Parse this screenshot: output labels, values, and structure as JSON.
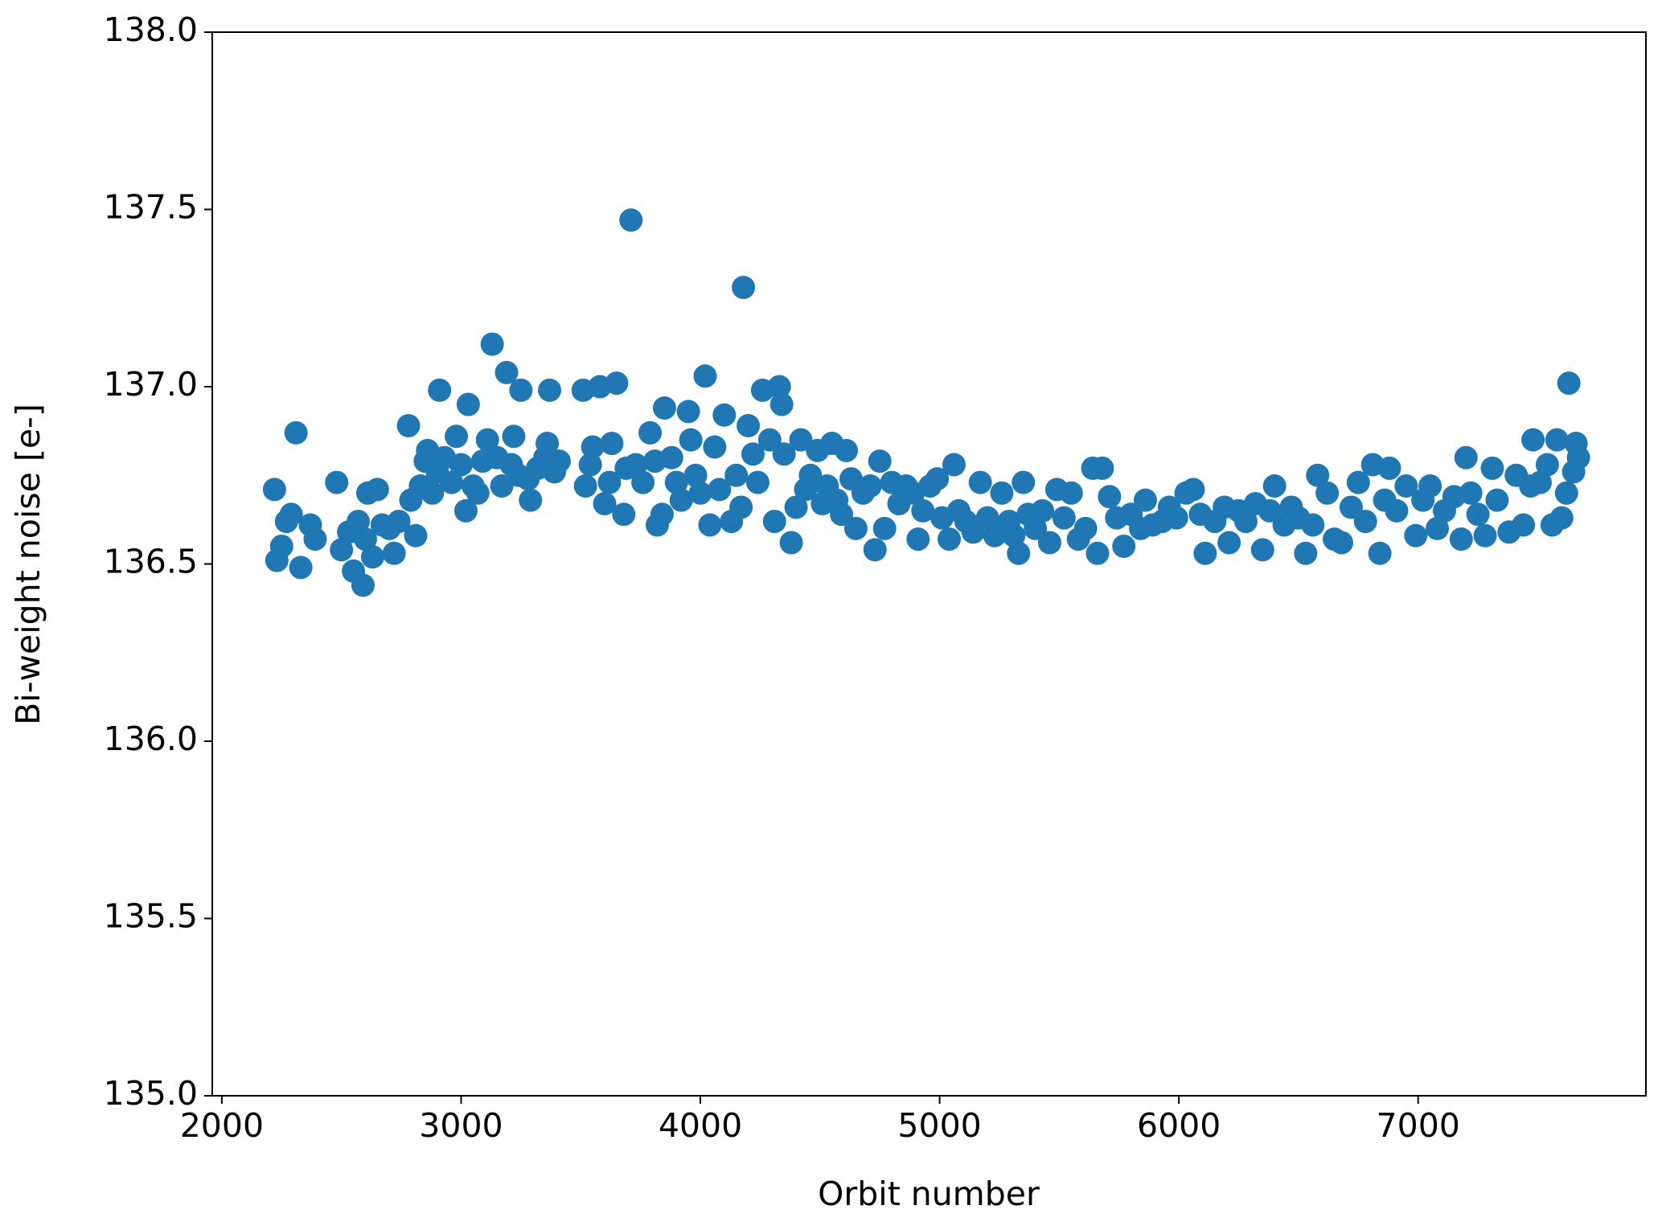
{
  "chart_data": {
    "type": "scatter",
    "xlabel": "Orbit number",
    "ylabel": "Bi-weight noise [e-]",
    "color": "#1f77b4",
    "xlim": [
      1960,
      7952
    ],
    "ylim": [
      135,
      138
    ],
    "xticks": [
      2000,
      3000,
      4000,
      5000,
      6000,
      7000
    ],
    "yticks": [
      {
        "value": 135,
        "label": "135.0"
      },
      135.5,
      {
        "value": 136,
        "label": "136.0"
      },
      136.5,
      {
        "value": 137,
        "label": "137.0"
      },
      137.5,
      {
        "value": 138,
        "label": "138.0"
      }
    ],
    "x": [
      2220,
      2230,
      2250,
      2270,
      2290,
      2310,
      2330,
      2370,
      2390,
      2480,
      2500,
      2530,
      2550,
      2570,
      2590,
      2600,
      2610,
      2630,
      2650,
      2670,
      2700,
      2720,
      2740,
      2780,
      2790,
      2810,
      2830,
      2850,
      2860,
      2880,
      2900,
      2910,
      2930,
      2960,
      2980,
      3000,
      3020,
      3030,
      3050,
      3070,
      3090,
      3110,
      3130,
      3150,
      3170,
      3190,
      3210,
      3220,
      3240,
      3250,
      3280,
      3290,
      3320,
      3350,
      3360,
      3370,
      3390,
      3410,
      3510,
      3520,
      3540,
      3550,
      3580,
      3600,
      3620,
      3630,
      3650,
      3680,
      3690,
      3710,
      3730,
      3760,
      3790,
      3810,
      3820,
      3840,
      3850,
      3880,
      3900,
      3920,
      3950,
      3960,
      3980,
      4000,
      4020,
      4040,
      4060,
      4080,
      4100,
      4130,
      4150,
      4170,
      4180,
      4200,
      4220,
      4240,
      4260,
      4290,
      4310,
      4330,
      4340,
      4350,
      4380,
      4400,
      4420,
      4440,
      4460,
      4490,
      4510,
      4530,
      4550,
      4570,
      4590,
      4610,
      4630,
      4650,
      4680,
      4710,
      4730,
      4750,
      4770,
      4800,
      4830,
      4860,
      4890,
      4910,
      4930,
      4960,
      4990,
      5010,
      5040,
      5060,
      5080,
      5110,
      5140,
      5170,
      5200,
      5230,
      5260,
      5290,
      5310,
      5330,
      5350,
      5370,
      5400,
      5430,
      5460,
      5490,
      5520,
      5550,
      5580,
      5610,
      5640,
      5660,
      5680,
      5710,
      5740,
      5770,
      5800,
      5840,
      5860,
      5890,
      5930,
      5960,
      5990,
      6030,
      6060,
      6090,
      6110,
      6150,
      6190,
      6210,
      6250,
      6280,
      6320,
      6350,
      6380,
      6400,
      6440,
      6470,
      6500,
      6530,
      6560,
      6580,
      6620,
      6650,
      6680,
      6720,
      6750,
      6780,
      6810,
      6840,
      6860,
      6880,
      6910,
      6950,
      6990,
      7020,
      7050,
      7080,
      7110,
      7150,
      7180,
      7200,
      7220,
      7250,
      7280,
      7310,
      7330,
      7380,
      7410,
      7440,
      7470,
      7480,
      7510,
      7540,
      7560,
      7580,
      7600,
      7620,
      7630,
      7650,
      7660,
      7670
    ],
    "values": [
      136.71,
      136.51,
      136.55,
      136.62,
      136.64,
      136.87,
      136.49,
      136.61,
      136.57,
      136.73,
      136.54,
      136.59,
      136.48,
      136.62,
      136.44,
      136.57,
      136.7,
      136.52,
      136.71,
      136.61,
      136.6,
      136.53,
      136.62,
      136.89,
      136.68,
      136.58,
      136.72,
      136.79,
      136.82,
      136.7,
      136.76,
      136.99,
      136.8,
      136.73,
      136.86,
      136.78,
      136.65,
      136.95,
      136.72,
      136.7,
      136.79,
      136.85,
      137.12,
      136.8,
      136.72,
      137.04,
      136.78,
      136.86,
      136.75,
      136.99,
      136.74,
      136.68,
      136.77,
      136.8,
      136.84,
      136.99,
      136.76,
      136.79,
      136.99,
      136.72,
      136.78,
      136.83,
      137.0,
      136.67,
      136.73,
      136.84,
      137.01,
      136.64,
      136.77,
      137.47,
      136.78,
      136.73,
      136.87,
      136.79,
      136.61,
      136.64,
      136.94,
      136.8,
      136.73,
      136.68,
      136.93,
      136.85,
      136.75,
      136.7,
      137.03,
      136.61,
      136.83,
      136.71,
      136.92,
      136.62,
      136.75,
      136.66,
      137.28,
      136.89,
      136.81,
      136.73,
      136.99,
      136.85,
      136.62,
      137.0,
      136.95,
      136.81,
      136.56,
      136.66,
      136.85,
      136.71,
      136.75,
      136.82,
      136.67,
      136.72,
      136.84,
      136.68,
      136.64,
      136.82,
      136.74,
      136.6,
      136.7,
      136.72,
      136.54,
      136.79,
      136.6,
      136.73,
      136.67,
      136.72,
      136.7,
      136.57,
      136.65,
      136.72,
      136.74,
      136.63,
      136.57,
      136.78,
      136.65,
      136.62,
      136.59,
      136.73,
      136.63,
      136.58,
      136.7,
      136.62,
      136.58,
      136.53,
      136.73,
      136.64,
      136.6,
      136.65,
      136.56,
      136.71,
      136.63,
      136.7,
      136.57,
      136.6,
      136.77,
      136.53,
      136.77,
      136.69,
      136.63,
      136.55,
      136.64,
      136.6,
      136.68,
      136.61,
      136.62,
      136.66,
      136.63,
      136.7,
      136.71,
      136.64,
      136.53,
      136.62,
      136.66,
      136.56,
      136.65,
      136.62,
      136.67,
      136.54,
      136.65,
      136.72,
      136.61,
      136.66,
      136.63,
      136.53,
      136.61,
      136.75,
      136.7,
      136.57,
      136.56,
      136.66,
      136.73,
      136.62,
      136.78,
      136.53,
      136.68,
      136.77,
      136.65,
      136.72,
      136.58,
      136.68,
      136.72,
      136.6,
      136.65,
      136.69,
      136.57,
      136.8,
      136.7,
      136.64,
      136.58,
      136.77,
      136.68,
      136.59,
      136.75,
      136.61,
      136.72,
      136.85,
      136.73,
      136.78,
      136.61,
      136.85,
      136.63,
      136.7,
      137.01,
      136.76,
      136.84,
      136.8
    ]
  }
}
